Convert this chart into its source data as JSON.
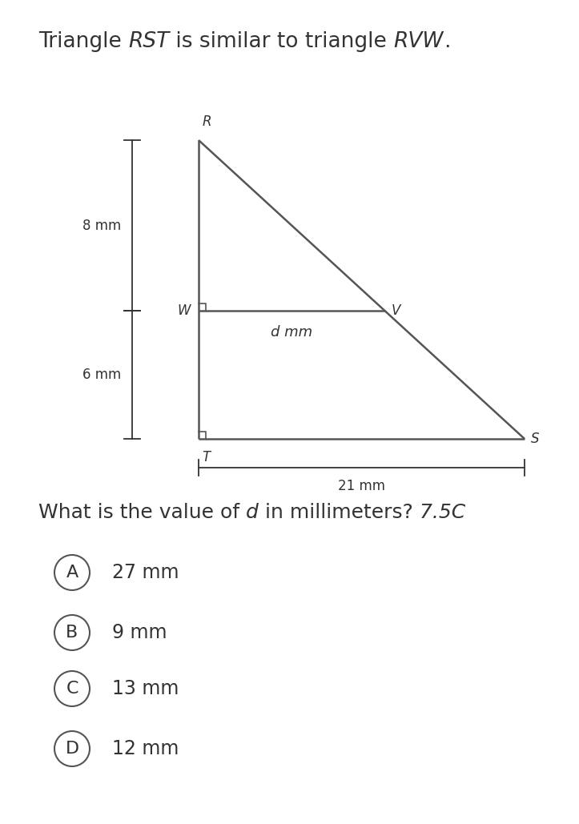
{
  "bg_color": "#ffffff",
  "text_color": "#333333",
  "triangle_color": "#555555",
  "dim_color": "#333333",
  "circle_color": "#555555",
  "label_R": "R",
  "label_W": "W",
  "label_V": "V",
  "label_S": "S",
  "label_T": "T",
  "dim_8mm": "8 mm",
  "dim_6mm": "6 mm",
  "dim_21mm": "21 mm",
  "dim_d": "d mm",
  "choices": [
    "A",
    "B",
    "C",
    "D"
  ],
  "choice_texts": [
    "27 mm",
    "9 mm",
    "13 mm",
    "12 mm"
  ],
  "font_size_title": 19,
  "font_size_question": 18,
  "font_size_choices": 17,
  "font_size_labels": 12,
  "font_size_dims": 12
}
